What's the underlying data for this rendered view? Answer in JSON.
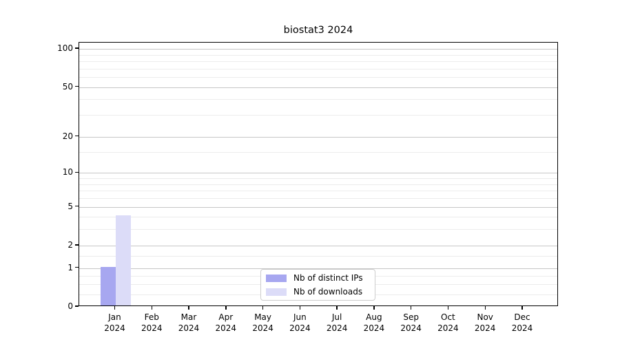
{
  "chart_data": {
    "type": "bar",
    "title": "biostat3 2024",
    "categories": [
      "Jan",
      "Feb",
      "Mar",
      "Apr",
      "May",
      "Jun",
      "Jul",
      "Aug",
      "Sep",
      "Oct",
      "Nov",
      "Dec"
    ],
    "category_year": "2024",
    "series": [
      {
        "name": "Nb of distinct IPs",
        "color": "#a7a7f0",
        "values": [
          1,
          0,
          0,
          0,
          0,
          0,
          0,
          0,
          0,
          0,
          0,
          0
        ]
      },
      {
        "name": "Nb of downloads",
        "color": "#dcdcf8",
        "values": [
          4,
          0,
          0,
          0,
          0,
          0,
          0,
          0,
          0,
          0,
          0,
          0
        ]
      }
    ],
    "xlabel": "",
    "ylabel": "",
    "yscale": "log1p",
    "ylim": [
      0,
      112
    ],
    "yticks": [
      0,
      1,
      2,
      5,
      10,
      20,
      50,
      100
    ],
    "minor_yticks": [
      0.25,
      0.5,
      0.75,
      1.5,
      3,
      4,
      6,
      7,
      8,
      9,
      15,
      30,
      40,
      60,
      70,
      80,
      90
    ],
    "grid": "horizontal major and minor",
    "legend_position": "bottom-center"
  },
  "colors": {
    "grid_major": "#c6c6c6",
    "grid_minor": "#ececec",
    "axis": "#000000",
    "legend_border": "#cccccc",
    "background": "#ffffff"
  }
}
